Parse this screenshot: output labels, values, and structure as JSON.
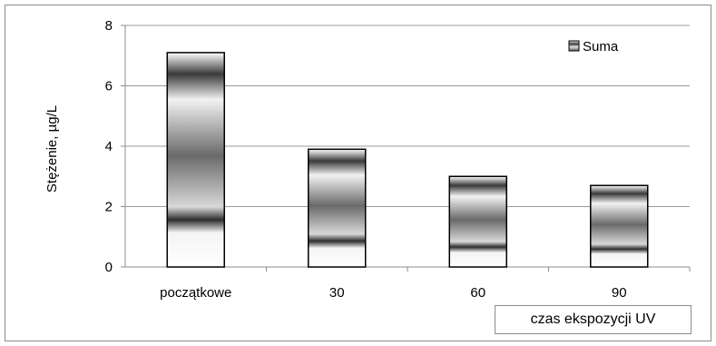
{
  "chart_data": {
    "type": "bar",
    "categories": [
      "początkowe",
      "30",
      "60",
      "90"
    ],
    "series": [
      {
        "name": "Suma",
        "values": [
          7.1,
          3.9,
          3.0,
          2.7
        ]
      }
    ],
    "title": "",
    "xlabel": "czas ekspozycji  UV",
    "ylabel": "Stężenie, µg/L",
    "ylim": [
      0,
      8
    ],
    "yticks": [
      "0",
      "2",
      "4",
      "6",
      "8"
    ],
    "grid": true,
    "legend_position": "top-right"
  },
  "colors": {
    "bar_dark": "#3a3a3a",
    "bar_light": "#e0e0e0",
    "bar_white": "#ffffff",
    "grid": "#9a9a9a",
    "axis": "#8c8c8c"
  }
}
